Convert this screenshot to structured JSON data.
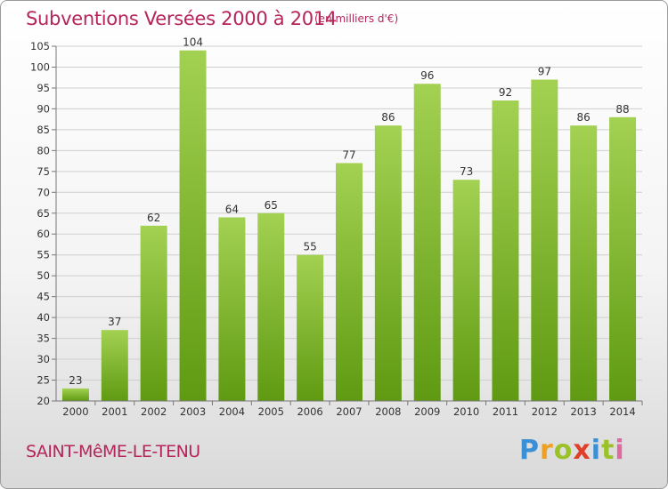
{
  "header": {
    "title": "Subventions Versées 2000 à 2014",
    "subtitle": "(en milliers d'€)"
  },
  "footer": {
    "commune": "SAINT-MêME-LE-TENU",
    "logo_text": "Proxiti",
    "logo_colors": [
      "#3a8fd6",
      "#f0a020",
      "#9cc22a",
      "#e0402a",
      "#3a8fd6",
      "#9cc22a",
      "#e06aa0"
    ]
  },
  "colors": {
    "title": "#b5245a",
    "bar_top": "#a3d152",
    "bar_bottom": "#5f9a12"
  },
  "chart_data": {
    "type": "bar",
    "categories": [
      "2000",
      "2001",
      "2002",
      "2003",
      "2004",
      "2005",
      "2006",
      "2007",
      "2008",
      "2009",
      "2010",
      "2011",
      "2012",
      "2013",
      "2014"
    ],
    "values": [
      23,
      37,
      62,
      104,
      64,
      65,
      55,
      77,
      86,
      96,
      73,
      92,
      97,
      86,
      88
    ],
    "data_labels": [
      "23",
      "37",
      "62",
      "104",
      "64",
      "65",
      "55",
      "77",
      "86",
      "96",
      "73",
      "92",
      "97",
      "86",
      "88"
    ],
    "ylim": [
      20,
      105
    ],
    "yticks": [
      "20",
      "25",
      "30",
      "35",
      "40",
      "45",
      "50",
      "55",
      "60",
      "65",
      "70",
      "75",
      "80",
      "85",
      "90",
      "95",
      "100",
      "105"
    ],
    "grid": true,
    "xlabel": "",
    "ylabel": ""
  }
}
